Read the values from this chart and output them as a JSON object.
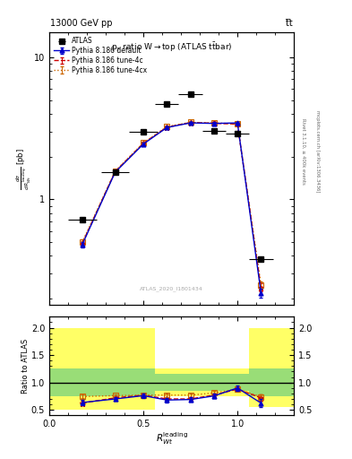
{
  "title": "p$_T$ ratio W → top (ATLAS t̅tbar)",
  "top_label": "13000 GeV pp",
  "top_right_label": "t̅t",
  "watermark": "ATLAS_2020_I1801434",
  "right_label1": "Rivet 3.1.10, ≥ 400k events",
  "right_label2": "mcplots.cern.ch [arXiv:1306.3436]",
  "ylabel_ratio": "Ratio to ATLAS",
  "xlim": [
    0.0,
    1.3
  ],
  "ylim_main_log": [
    0.18,
    15.0
  ],
  "ylim_ratio": [
    0.4,
    2.2
  ],
  "atlas_x": [
    0.175,
    0.35,
    0.5,
    0.625,
    0.75,
    0.875,
    1.0,
    1.125
  ],
  "atlas_y": [
    0.72,
    1.55,
    3.0,
    4.7,
    5.5,
    3.05,
    2.9,
    0.38
  ],
  "atlas_xerr": [
    0.075,
    0.075,
    0.075,
    0.0625,
    0.0625,
    0.0625,
    0.0625,
    0.0625
  ],
  "pythia_default_x": [
    0.175,
    0.35,
    0.5,
    0.625,
    0.75,
    0.875,
    1.0,
    1.125
  ],
  "pythia_default_y": [
    0.48,
    1.55,
    2.45,
    3.2,
    3.45,
    3.42,
    3.45,
    0.22
  ],
  "pythia_default_yerr": [
    0.02,
    0.04,
    0.05,
    0.06,
    0.06,
    0.06,
    0.06,
    0.015
  ],
  "pythia_4c_x": [
    0.175,
    0.35,
    0.5,
    0.625,
    0.75,
    0.875,
    1.0,
    1.125
  ],
  "pythia_4c_y": [
    0.49,
    1.57,
    2.48,
    3.22,
    3.47,
    3.43,
    3.38,
    0.24
  ],
  "pythia_4c_yerr": [
    0.02,
    0.04,
    0.05,
    0.06,
    0.06,
    0.06,
    0.06,
    0.015
  ],
  "pythia_4cx_x": [
    0.175,
    0.35,
    0.5,
    0.625,
    0.75,
    0.875,
    1.0,
    1.125
  ],
  "pythia_4cx_y": [
    0.5,
    1.58,
    2.5,
    3.25,
    3.48,
    3.45,
    3.4,
    0.25
  ],
  "pythia_4cx_yerr": [
    0.02,
    0.04,
    0.05,
    0.06,
    0.06,
    0.06,
    0.06,
    0.015
  ],
  "ratio_default_x": [
    0.175,
    0.35,
    0.5,
    0.625,
    0.75,
    0.875,
    1.0,
    1.125
  ],
  "ratio_default_y": [
    0.635,
    0.7,
    0.76,
    0.68,
    0.69,
    0.755,
    0.9,
    0.625
  ],
  "ratio_default_yerr": [
    0.05,
    0.04,
    0.04,
    0.04,
    0.04,
    0.04,
    0.05,
    0.07
  ],
  "ratio_4c_x": [
    0.175,
    0.35,
    0.5,
    0.625,
    0.75,
    0.875,
    1.0,
    1.125
  ],
  "ratio_4c_y": [
    0.625,
    0.72,
    0.77,
    0.7,
    0.7,
    0.77,
    0.88,
    0.72
  ],
  "ratio_4c_yerr": [
    0.04,
    0.03,
    0.03,
    0.03,
    0.03,
    0.03,
    0.04,
    0.06
  ],
  "ratio_4cx_x": [
    0.175,
    0.35,
    0.5,
    0.625,
    0.75,
    0.875,
    1.0,
    1.125
  ],
  "ratio_4cx_y": [
    0.745,
    0.76,
    0.77,
    0.77,
    0.77,
    0.81,
    0.88,
    0.74
  ],
  "ratio_4cx_yerr": [
    0.03,
    0.03,
    0.03,
    0.03,
    0.03,
    0.03,
    0.03,
    0.05
  ],
  "band_edges": [
    0.0,
    0.25,
    0.4375,
    0.5625,
    0.6875,
    0.9375,
    1.0625,
    1.3
  ],
  "band_yel_lo": [
    0.5,
    0.5,
    0.5,
    0.75,
    0.75,
    0.75,
    0.55,
    0.55
  ],
  "band_yel_hi": [
    2.0,
    2.0,
    2.0,
    1.25,
    1.25,
    1.25,
    2.0,
    2.0
  ],
  "band_grn_lo": [
    0.75,
    0.75,
    0.75,
    0.85,
    0.85,
    0.85,
    0.75,
    0.75
  ],
  "band_grn_hi": [
    1.25,
    1.25,
    1.25,
    1.15,
    1.15,
    1.15,
    1.25,
    1.25
  ],
  "color_default": "#0000cc",
  "color_4c": "#cc0000",
  "color_4cx": "#cc6600",
  "color_atlas": "#000000",
  "color_yellow": "#ffff66",
  "color_green": "#99dd77"
}
